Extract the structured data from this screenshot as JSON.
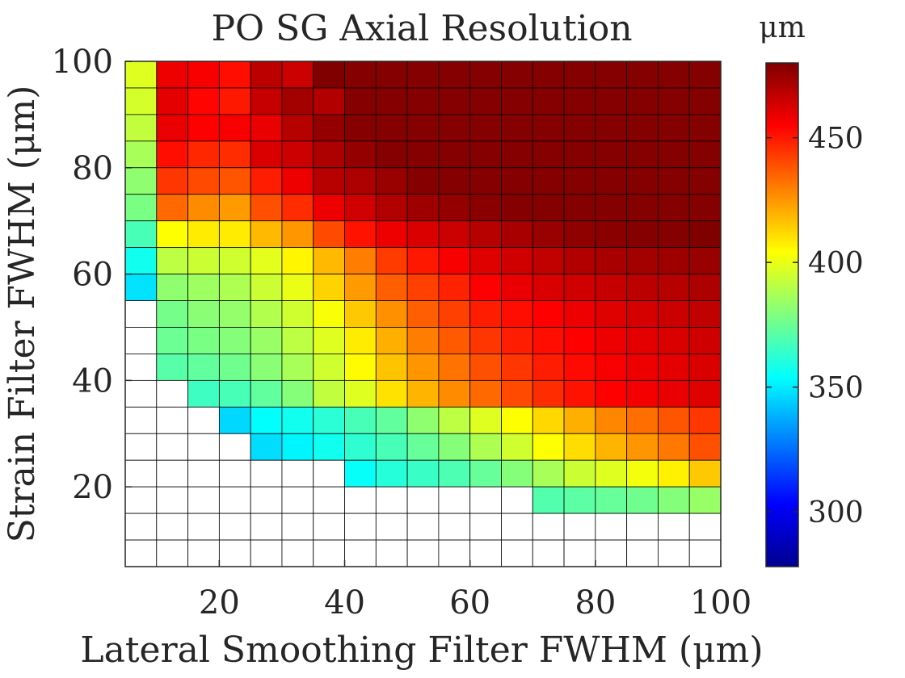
{
  "chart_data": {
    "type": "heatmap",
    "title": "PO SG Axial Resolution",
    "xlabel": "Lateral Smoothing Filter FWHM (μm)",
    "ylabel": "Strain Filter FWHM (μm)",
    "colorbar_label": "μm",
    "colormap": "jet",
    "clim": [
      278,
      480
    ],
    "xlim": [
      5,
      100
    ],
    "ylim": [
      5,
      100
    ],
    "x_ticks": [
      20,
      40,
      60,
      80,
      100
    ],
    "y_ticks": [
      20,
      40,
      60,
      80,
      100
    ],
    "colorbar_ticks": [
      300,
      350,
      400,
      450
    ],
    "x": [
      7.5,
      12.5,
      17.5,
      22.5,
      27.5,
      32.5,
      37.5,
      42.5,
      47.5,
      52.5,
      57.5,
      62.5,
      67.5,
      72.5,
      77.5,
      82.5,
      87.5,
      92.5,
      97.5
    ],
    "y": [
      7.5,
      12.5,
      17.5,
      22.5,
      27.5,
      32.5,
      37.5,
      42.5,
      47.5,
      52.5,
      57.5,
      62.5,
      67.5,
      72.5,
      77.5,
      82.5,
      87.5,
      92.5,
      97.5
    ],
    "z_rows_top_to_bottom": [
      [
        398,
        458,
        456,
        452,
        468,
        465,
        480,
        479,
        479,
        479,
        479,
        479,
        479,
        479,
        479,
        479,
        479,
        479,
        479
      ],
      [
        396,
        460,
        454,
        450,
        466,
        473,
        470,
        479,
        479,
        479,
        479,
        479,
        479,
        479,
        479,
        479,
        479,
        479,
        479
      ],
      [
        392,
        459,
        455,
        456,
        459,
        469,
        476,
        479,
        479,
        479,
        479,
        479,
        479,
        479,
        479,
        479,
        479,
        479,
        479
      ],
      [
        387,
        452,
        447,
        446,
        462,
        465,
        471,
        476,
        479,
        479,
        479,
        479,
        479,
        479,
        479,
        479,
        479,
        479,
        479
      ],
      [
        382,
        444,
        440,
        438,
        449,
        458,
        469,
        471,
        475,
        479,
        479,
        479,
        479,
        479,
        479,
        479,
        479,
        479,
        479
      ],
      [
        378,
        434,
        427,
        424,
        439,
        446,
        458,
        464,
        470,
        474,
        476,
        478,
        479,
        479,
        479,
        479,
        479,
        479,
        479
      ],
      [
        368,
        404,
        408,
        408,
        418,
        425,
        440,
        451,
        458,
        462,
        465,
        469,
        472,
        475,
        477,
        478,
        479,
        479,
        480
      ],
      [
        357,
        391,
        394,
        395,
        399,
        406,
        418,
        430,
        443,
        450,
        456,
        461,
        464,
        467,
        470,
        472,
        473,
        474,
        475
      ],
      [
        348,
        382,
        385,
        388,
        394,
        400,
        413,
        424,
        436,
        442,
        448,
        455,
        459,
        462,
        464,
        466,
        468,
        469,
        471
      ],
      [
        null,
        377,
        381,
        383,
        389,
        395,
        403,
        415,
        426,
        436,
        442,
        449,
        452,
        455,
        458,
        461,
        463,
        465,
        467
      ],
      [
        null,
        375,
        378,
        380,
        384,
        391,
        398,
        408,
        420,
        430,
        437,
        444,
        449,
        452,
        455,
        458,
        460,
        462,
        464
      ],
      [
        null,
        371,
        373,
        376,
        381,
        387,
        395,
        405,
        416,
        425,
        432,
        439,
        444,
        449,
        453,
        456,
        458,
        460,
        462
      ],
      [
        null,
        null,
        366,
        368,
        373,
        380,
        392,
        398,
        410,
        419,
        427,
        434,
        440,
        446,
        451,
        455,
        457,
        459,
        461
      ],
      [
        null,
        null,
        null,
        346,
        354,
        357,
        362,
        368,
        373,
        382,
        391,
        398,
        404,
        412,
        420,
        428,
        433,
        438,
        444
      ],
      [
        null,
        null,
        null,
        null,
        347,
        352,
        357,
        363,
        368,
        374,
        380,
        388,
        395,
        404,
        411,
        419,
        425,
        431,
        439
      ],
      [
        null,
        null,
        null,
        null,
        null,
        null,
        null,
        355,
        361,
        365,
        369,
        374,
        380,
        387,
        394,
        398,
        402,
        407,
        415
      ],
      [
        null,
        null,
        null,
        null,
        null,
        null,
        null,
        null,
        null,
        null,
        null,
        null,
        null,
        370,
        372,
        374,
        376,
        380,
        384
      ],
      [
        null,
        null,
        null,
        null,
        null,
        null,
        null,
        null,
        null,
        null,
        null,
        null,
        null,
        null,
        null,
        null,
        null,
        null,
        null
      ],
      [
        null,
        null,
        null,
        null,
        null,
        null,
        null,
        null,
        null,
        null,
        null,
        null,
        null,
        null,
        null,
        null,
        null,
        null,
        null
      ]
    ],
    "grid": true,
    "colorbar_position": "right"
  }
}
